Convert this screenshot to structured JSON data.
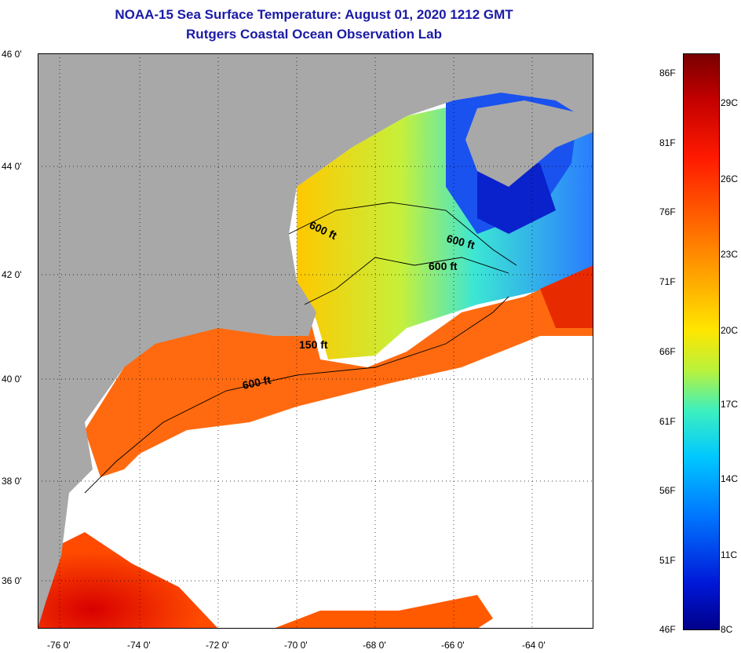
{
  "title": {
    "line1": "NOAA-15 Sea Surface Temperature:  August 01, 2020 1212 GMT",
    "line2": "Rutgers Coastal Ocean Observation Lab"
  },
  "map": {
    "latitude_labels": [
      "46 0'",
      "44 0'",
      "42 0'",
      "40 0'",
      "38 0'",
      "36 0'"
    ],
    "longitude_labels": [
      "-76 0'",
      "-74 0'",
      "-72 0'",
      "-70 0'",
      "-68 0'",
      "-66 0'",
      "-64 0'"
    ],
    "contour_labels": [
      "600 ft",
      "600 ft",
      "600 ft",
      "150 ft",
      "600 ft"
    ],
    "colors": {
      "land": "#a8a8a8",
      "cloud": "#ffffff",
      "grid": "#000000"
    }
  },
  "colorbar": {
    "fahrenheit_labels": [
      "86F",
      "81F",
      "76F",
      "71F",
      "66F",
      "61F",
      "56F",
      "51F",
      "46F"
    ],
    "celsius_labels": [
      "29C",
      "26C",
      "23C",
      "20C",
      "17C",
      "14C",
      "11C",
      "8C"
    ],
    "colors": [
      "#7a0000",
      "#c40000",
      "#ff1a00",
      "#ff6a00",
      "#ffae00",
      "#ffe600",
      "#b8f23c",
      "#3cf0c0",
      "#00c8ff",
      "#0078ff",
      "#0018d8",
      "#00008a"
    ]
  }
}
